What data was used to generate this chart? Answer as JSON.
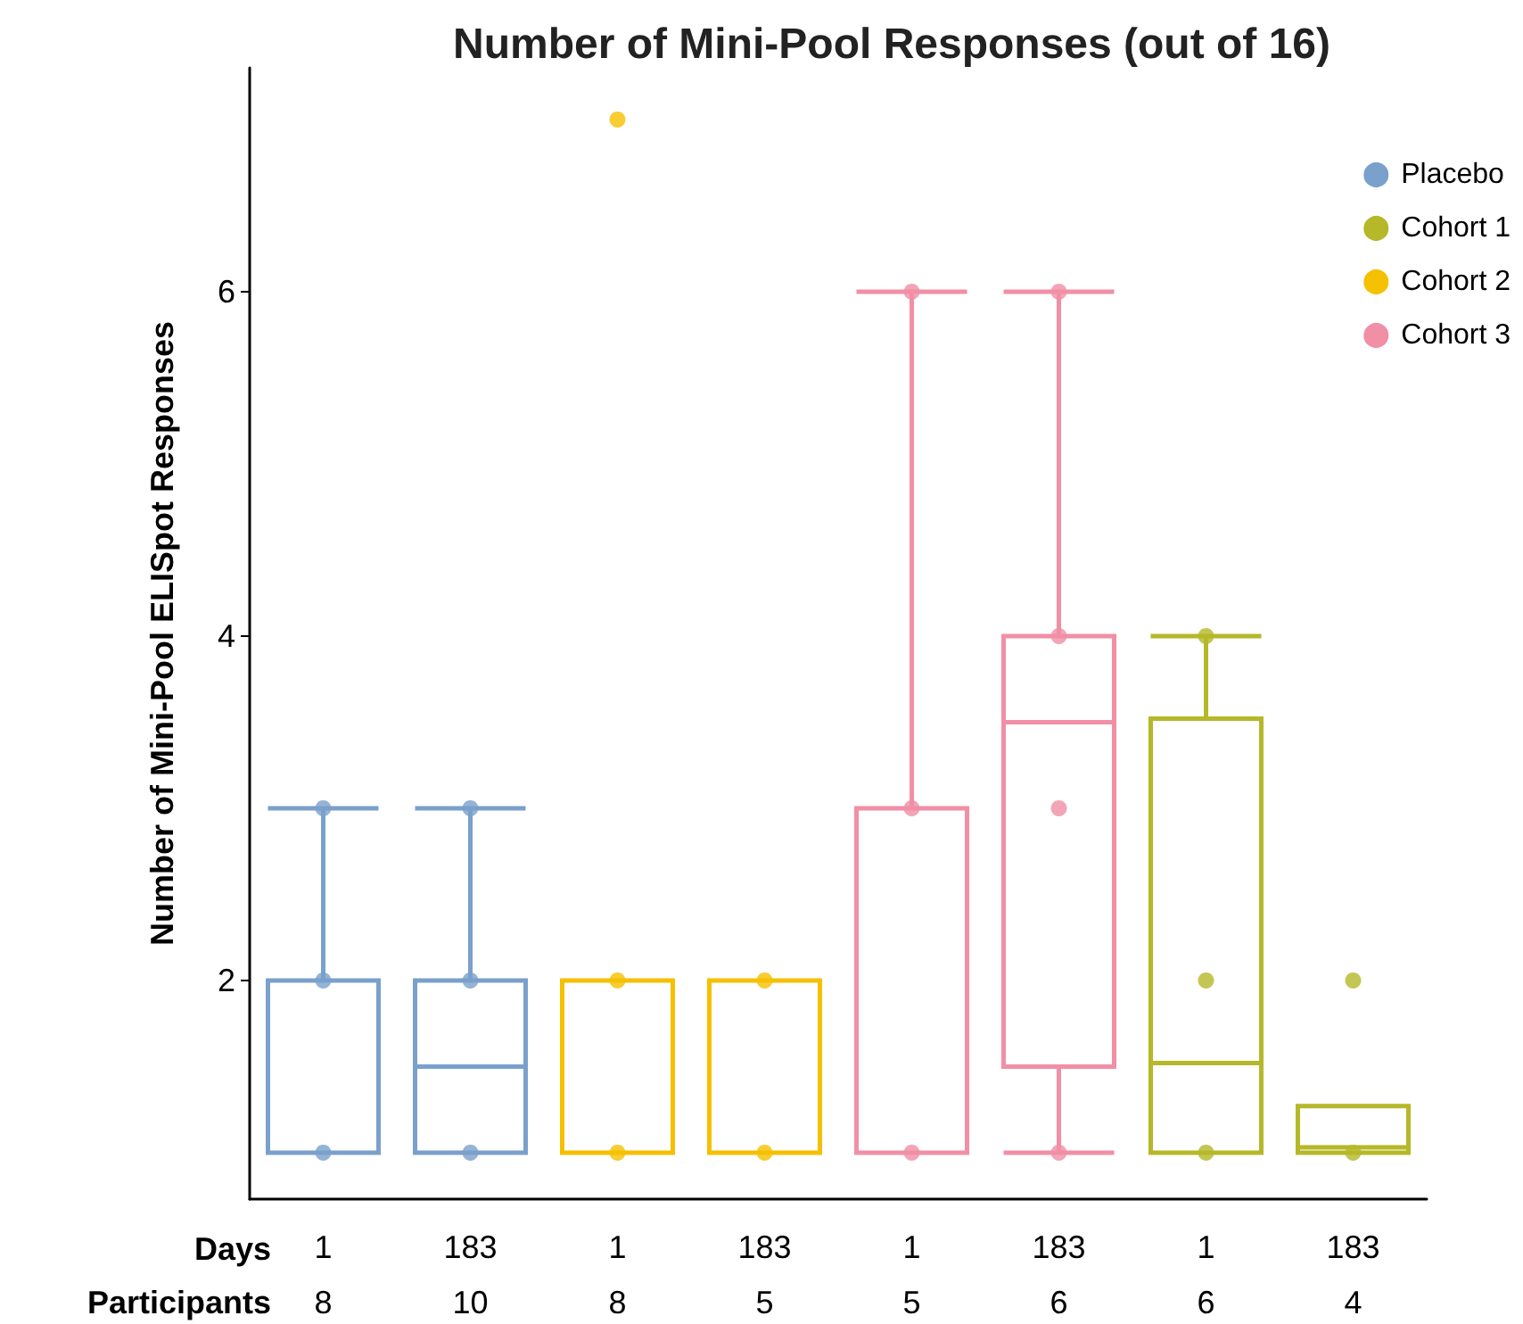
{
  "chart_data": {
    "type": "box",
    "title": "Number of Mini-Pool Responses (out of 16)",
    "xlabel": "Days",
    "ylabel": "Number of Mini-Pool ELISpot Responses",
    "categories": [
      "1",
      "183",
      "1",
      "183",
      "1",
      "183",
      "1",
      "183"
    ],
    "ylim": [
      0.73,
      7.3
    ],
    "yticks": [
      2,
      4,
      6
    ],
    "grid": false,
    "legend": "top right",
    "marker": "circle",
    "annotations": [
      "Participants",
      "8",
      "10",
      "8",
      "5",
      "5",
      "6",
      "6",
      "4"
    ],
    "series": [
      {
        "name": "Placebo",
        "color": "#7aa0cc",
        "boxes": [
          {
            "low": 1,
            "q1": 1,
            "median": 1,
            "q3": 2,
            "high": 3,
            "outliers": [
              1,
              2,
              3
            ]
          },
          {
            "low": 1,
            "q1": 1,
            "median": 1.5,
            "q3": 2,
            "high": 3,
            "outliers": [
              1,
              2,
              3
            ]
          },
          null,
          null,
          null,
          null,
          null,
          null
        ]
      },
      {
        "name": "Cohort 1",
        "color": "#b5b828",
        "boxes": [
          null,
          null,
          null,
          null,
          null,
          null,
          {
            "low": 1,
            "q1": 1,
            "median": 1.52,
            "q3": 3.52,
            "high": 4,
            "outliers": [
              1,
              2,
              4
            ]
          },
          {
            "low": 1,
            "q1": 1,
            "median": 1.03,
            "q3": 1.27,
            "high": 1.27,
            "outliers": [
              1,
              2
            ]
          }
        ]
      },
      {
        "name": "Cohort 2",
        "color": "#f5c000",
        "boxes": [
          null,
          null,
          {
            "low": 1,
            "q1": 1,
            "median": 2,
            "q3": 2,
            "high": 2,
            "outliers": [
              1,
              2,
              7
            ]
          },
          {
            "low": 1,
            "q1": 1,
            "median": 2,
            "q3": 2,
            "high": 2,
            "outliers": [
              1,
              2
            ]
          },
          null,
          null,
          null,
          null
        ]
      },
      {
        "name": "Cohort 3",
        "color": "#f08fa6",
        "boxes": [
          null,
          null,
          null,
          null,
          {
            "low": 1,
            "q1": 1,
            "median": 1,
            "q3": 3,
            "high": 6,
            "outliers": [
              1,
              3,
              6
            ]
          },
          {
            "low": 1,
            "q1": 1.5,
            "median": 3.5,
            "q3": 4,
            "high": 6,
            "outliers": [
              1,
              3,
              4,
              6
            ]
          },
          null,
          null
        ]
      }
    ]
  }
}
